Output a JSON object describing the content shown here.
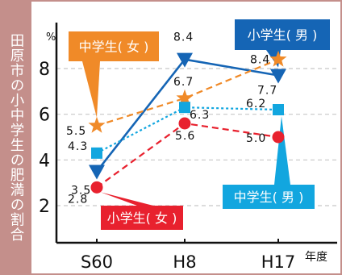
{
  "sidebar": {
    "title": "田原市の小中学生の肥満の割合"
  },
  "chart_data": {
    "type": "line",
    "categories": [
      "S60",
      "H8",
      "H17"
    ],
    "xlabel": "年度",
    "ylabel": "%",
    "ylim": [
      1.5,
      9.5
    ],
    "yticks": [
      2,
      4,
      6,
      8
    ],
    "grid": true,
    "series": [
      {
        "name": "小学生(男)",
        "values": [
          3.5,
          8.4,
          7.7
        ],
        "value_labels": [
          "3.5",
          "8.4",
          "7.7"
        ],
        "color": "#1565b5",
        "dash": "solid",
        "marker": "triangle-down"
      },
      {
        "name": "中学生(女)",
        "values": [
          5.5,
          6.7,
          8.4
        ],
        "value_labels": [
          "5.5",
          "6.7",
          "8.4"
        ],
        "color": "#f08a28",
        "dash": "dashed",
        "marker": "star"
      },
      {
        "name": "中学生(男)",
        "values": [
          4.3,
          6.3,
          6.2
        ],
        "value_labels": [
          "4.3",
          "6.3",
          "6.2"
        ],
        "color": "#12a6df",
        "dash": "dotted",
        "marker": "square"
      },
      {
        "name": "小学生(女)",
        "values": [
          2.8,
          5.6,
          5.0
        ],
        "value_labels": [
          "2.8",
          "5.6",
          "5.0"
        ],
        "color": "#e8212e",
        "dash": "dashed",
        "marker": "circle"
      }
    ],
    "callouts": [
      {
        "text": "小学生( 男 )",
        "color": "#1565b5",
        "series": 0
      },
      {
        "text": "中学生( 女 )",
        "color": "#f08a28",
        "series": 1
      },
      {
        "text": "中学生( 男 )",
        "color": "#12a6df",
        "series": 2
      },
      {
        "text": "小学生( 女 )",
        "color": "#e8212e",
        "series": 3
      }
    ]
  }
}
